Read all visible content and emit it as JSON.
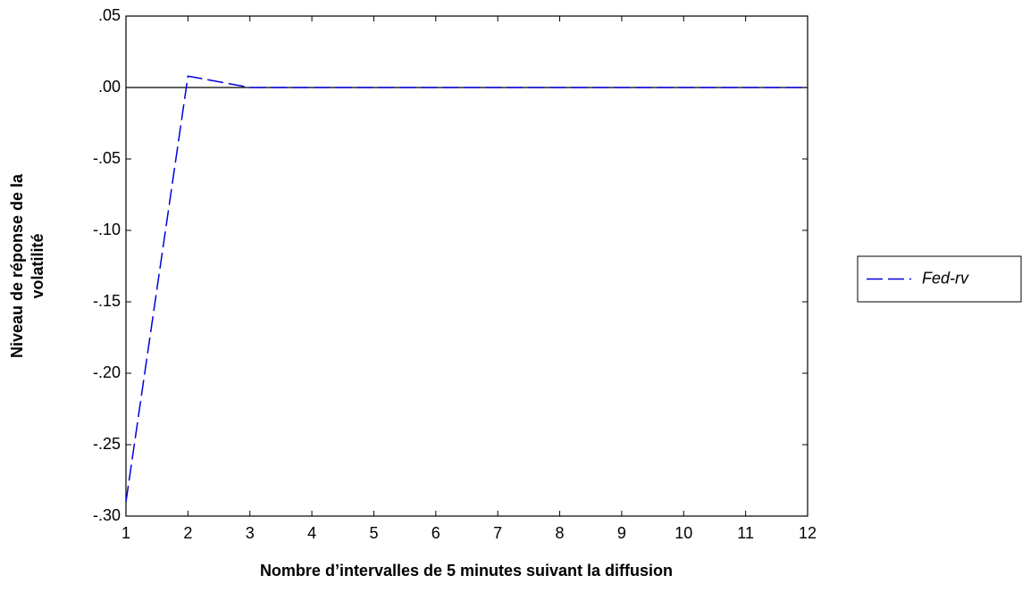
{
  "chart_data": {
    "type": "line",
    "x_label": "Nombre d’intervalles de 5 minutes suivant la diffusion",
    "y_label": [
      "Niveau de réponse de la",
      "volatilité"
    ],
    "x": [
      1,
      2,
      3,
      4,
      5,
      6,
      7,
      8,
      9,
      10,
      11,
      12
    ],
    "series": [
      {
        "name": "Fed-rv",
        "color": "#0000dd",
        "dashed": true,
        "values": [
          -0.29,
          0.008,
          0,
          0,
          0,
          0,
          0,
          0,
          0,
          0,
          0,
          0
        ]
      }
    ],
    "xlim": [
      1,
      12
    ],
    "xticks": [
      1,
      2,
      3,
      4,
      5,
      6,
      7,
      8,
      9,
      10,
      11,
      12
    ],
    "ylim": [
      -0.3,
      0.05
    ],
    "yticks": [
      {
        "value": -0.3,
        "label": "-.30"
      },
      {
        "value": -0.25,
        "label": "-.25"
      },
      {
        "value": -0.2,
        "label": "-.20"
      },
      {
        "value": -0.15,
        "label": "-.15"
      },
      {
        "value": -0.1,
        "label": "-.10"
      },
      {
        "value": -0.05,
        "label": "-.05"
      },
      {
        "value": 0,
        "label": ".00"
      },
      {
        "value": 0.05,
        "label": ".05"
      }
    ],
    "zero_line": true,
    "legend": "right"
  }
}
